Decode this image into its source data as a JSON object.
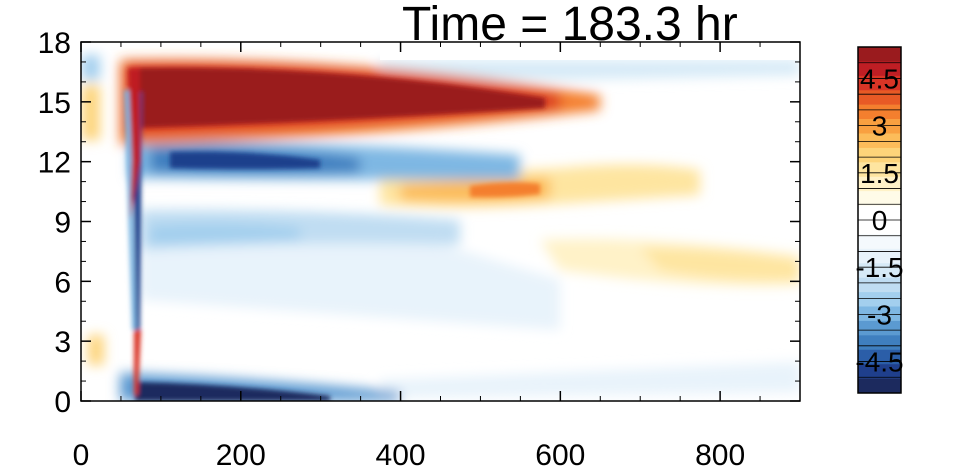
{
  "chart_data": {
    "type": "heatmap",
    "title": "Time = 183.3 hr",
    "xlabel": "",
    "ylabel": "",
    "xlim": [
      0,
      900
    ],
    "ylim": [
      0,
      18
    ],
    "x_ticks": [
      0,
      200,
      400,
      600,
      800
    ],
    "y_ticks": [
      0,
      3,
      6,
      9,
      12,
      15,
      18
    ],
    "grid": false,
    "legend": "colorbar-right",
    "colorbar": {
      "labels": [
        "4.5",
        "3",
        "1.5",
        "0",
        "-1.5",
        "-3",
        "-4.5"
      ],
      "label_values": [
        4.5,
        3,
        1.5,
        0,
        -1.5,
        -3,
        -4.5
      ],
      "level_min": -5.5,
      "level_max": 5.5,
      "level_step": 0.5,
      "colors": [
        "#1c2a5e",
        "#1f3f8c",
        "#2b5ea8",
        "#3f7fbf",
        "#5b9ad1",
        "#7eb7e3",
        "#a3cfee",
        "#c0ddf2",
        "#d6eaf7",
        "#e8f3fb",
        "#f4f9fd",
        "#ffffff",
        "#ffffff",
        "#fffbe8",
        "#fff2c8",
        "#fee5a0",
        "#fdd47a",
        "#fcbc5a",
        "#f9a040",
        "#f47f2e",
        "#e85a25",
        "#d93526",
        "#bf1e24",
        "#9a1b1e"
      ]
    },
    "features": [
      {
        "name": "upper-positive-band",
        "x_range": [
          70,
          580
        ],
        "y_range": [
          13.5,
          16.8
        ],
        "max_value": 5.5
      },
      {
        "name": "negative-band-12",
        "x_range": [
          80,
          520
        ],
        "y_range": [
          11.3,
          13.0
        ],
        "min_value": -4.5
      },
      {
        "name": "positive-band-10",
        "x_range": [
          380,
          720
        ],
        "y_range": [
          9.8,
          11.0
        ],
        "max_value": 3.0
      },
      {
        "name": "negative-band-8",
        "x_range": [
          80,
          460
        ],
        "y_range": [
          7.5,
          9.2
        ],
        "min_value": -2.0
      },
      {
        "name": "weak-positive-band-7",
        "x_range": [
          540,
          900
        ],
        "y_range": [
          6.3,
          8.0
        ],
        "max_value": 1.0
      },
      {
        "name": "surface-negative-band",
        "x_range": [
          70,
          400
        ],
        "y_range": [
          0,
          1.0
        ],
        "min_value": -5.5
      },
      {
        "name": "front-line",
        "x_range": [
          50,
          80
        ],
        "y_range": [
          0,
          17
        ],
        "min_value": -5.5,
        "max_value": 5.5
      }
    ]
  }
}
